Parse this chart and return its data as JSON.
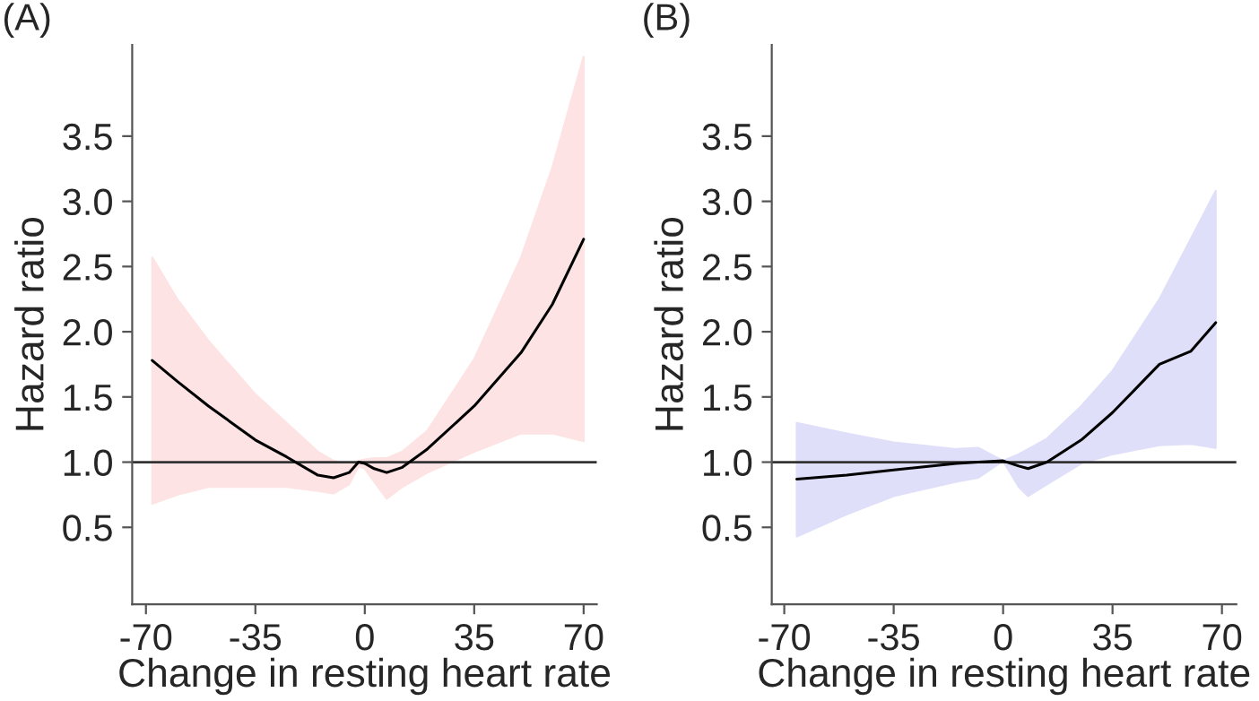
{
  "chart_data": [
    {
      "type": "line",
      "title": "(A)",
      "xlabel": "Change in resting heart rate",
      "ylabel": "Hazard ratio",
      "xlim": [
        -74.4,
        74.2
      ],
      "ylim": [
        -0.09,
        4.2
      ],
      "xticks": [
        -70,
        -35,
        0,
        35,
        70
      ],
      "yticks": [
        0.5,
        {
          "value": 1,
          "label": "1.0"
        },
        1.5,
        {
          "value": 2,
          "label": "2.0"
        },
        2.5,
        {
          "value": 3,
          "label": "3.0"
        },
        3.5
      ],
      "grid": false,
      "legend": false,
      "x": [
        -68,
        -60,
        -50,
        -35,
        -25,
        -15,
        -10,
        -5,
        -2,
        0,
        3,
        7,
        12,
        20,
        35,
        50,
        60,
        70
      ],
      "series": [
        {
          "color": "#000000",
          "values": [
            1.78,
            1.62,
            1.43,
            1.17,
            1.04,
            0.9,
            0.88,
            0.92,
            1.0,
            0.99,
            0.95,
            0.92,
            0.96,
            1.1,
            1.43,
            1.84,
            2.21,
            2.71
          ],
          "upper": [
            2.57,
            2.25,
            1.93,
            1.52,
            1.3,
            1.08,
            1.01,
            0.98,
            1.01,
            1.02,
            1.03,
            1.03,
            1.08,
            1.24,
            1.79,
            2.57,
            3.26,
            4.11
          ],
          "lower": [
            0.68,
            0.75,
            0.81,
            0.81,
            0.81,
            0.78,
            0.76,
            0.83,
            0.97,
            0.95,
            0.85,
            0.72,
            0.81,
            0.92,
            1.08,
            1.22,
            1.22,
            1.16
          ]
        }
      ],
      "ref_lines": [
        {
          "axis": "y",
          "value": 1.0,
          "color": "#333333"
        }
      ]
    },
    {
      "type": "line",
      "title": "(B)",
      "xlabel": "Change in resting heart rate",
      "ylabel": "Hazard ratio",
      "xlim": [
        -74.0,
        74.6
      ],
      "ylim": [
        -0.09,
        4.2
      ],
      "xticks": [
        -70,
        -35,
        0,
        35,
        70
      ],
      "yticks": [
        0.5,
        {
          "value": 1,
          "label": "1.0"
        },
        1.5,
        {
          "value": 2,
          "label": "2.0"
        },
        2.5,
        {
          "value": 3,
          "label": "3.0"
        },
        3.5
      ],
      "grid": false,
      "legend": false,
      "x": [
        -66,
        -50,
        -35,
        -15,
        -8,
        0,
        5,
        8,
        14,
        25,
        35,
        50,
        60,
        68
      ],
      "series": [
        {
          "color": "#000000",
          "values": [
            0.87,
            0.9,
            0.94,
            0.99,
            1.0,
            1.01,
            0.97,
            0.95,
            1.0,
            1.17,
            1.38,
            1.75,
            1.85,
            2.07
          ],
          "upper": [
            1.3,
            1.22,
            1.15,
            1.1,
            1.11,
            1.01,
            1.06,
            1.1,
            1.18,
            1.43,
            1.7,
            2.25,
            2.71,
            3.08
          ],
          "lower": [
            0.43,
            0.6,
            0.74,
            0.85,
            0.88,
            1.01,
            0.81,
            0.74,
            0.83,
            0.99,
            1.06,
            1.13,
            1.14,
            1.11
          ]
        }
      ],
      "ref_lines": [
        {
          "axis": "y",
          "value": 1.0,
          "color": "#333333"
        }
      ]
    }
  ]
}
